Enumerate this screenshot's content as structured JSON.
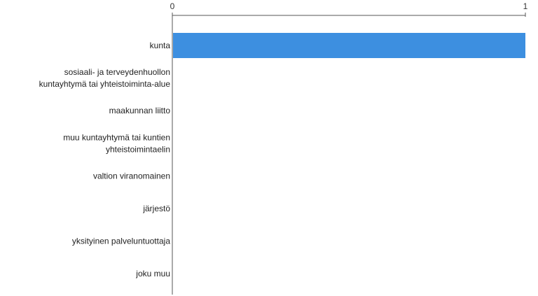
{
  "chart_data": {
    "type": "bar",
    "orientation": "horizontal",
    "title": "",
    "xlabel": "",
    "ylabel": "",
    "xlim": [
      0,
      1
    ],
    "x_ticks": [
      "0",
      "1"
    ],
    "categories": [
      "kunta",
      "sosiaali- ja terveydenhuollon kuntayhtymä tai yhteistoiminta-alue",
      "maakunnan liitto",
      "muu kuntayhtymä tai kuntien yhteistoimintaelin",
      "valtion viranomainen",
      "järjestö",
      "yksityinen palveluntuottaja",
      "joku muu"
    ],
    "category_lines": [
      [
        "kunta"
      ],
      [
        "sosiaali- ja terveydenhuollon",
        "kuntayhtymä tai yhteistoiminta-alue"
      ],
      [
        "maakunnan liitto"
      ],
      [
        "muu kuntayhtymä tai kuntien",
        "yhteistoimintaelin"
      ],
      [
        "valtion viranomainen"
      ],
      [
        "järjestö"
      ],
      [
        "yksityinen palveluntuottaja"
      ],
      [
        "joku muu"
      ]
    ],
    "values": [
      1,
      0,
      0,
      0,
      0,
      0,
      0,
      0
    ],
    "bar_color": "#3d8fe0",
    "axis_color": "#555555",
    "grid": false,
    "legend": "none"
  }
}
